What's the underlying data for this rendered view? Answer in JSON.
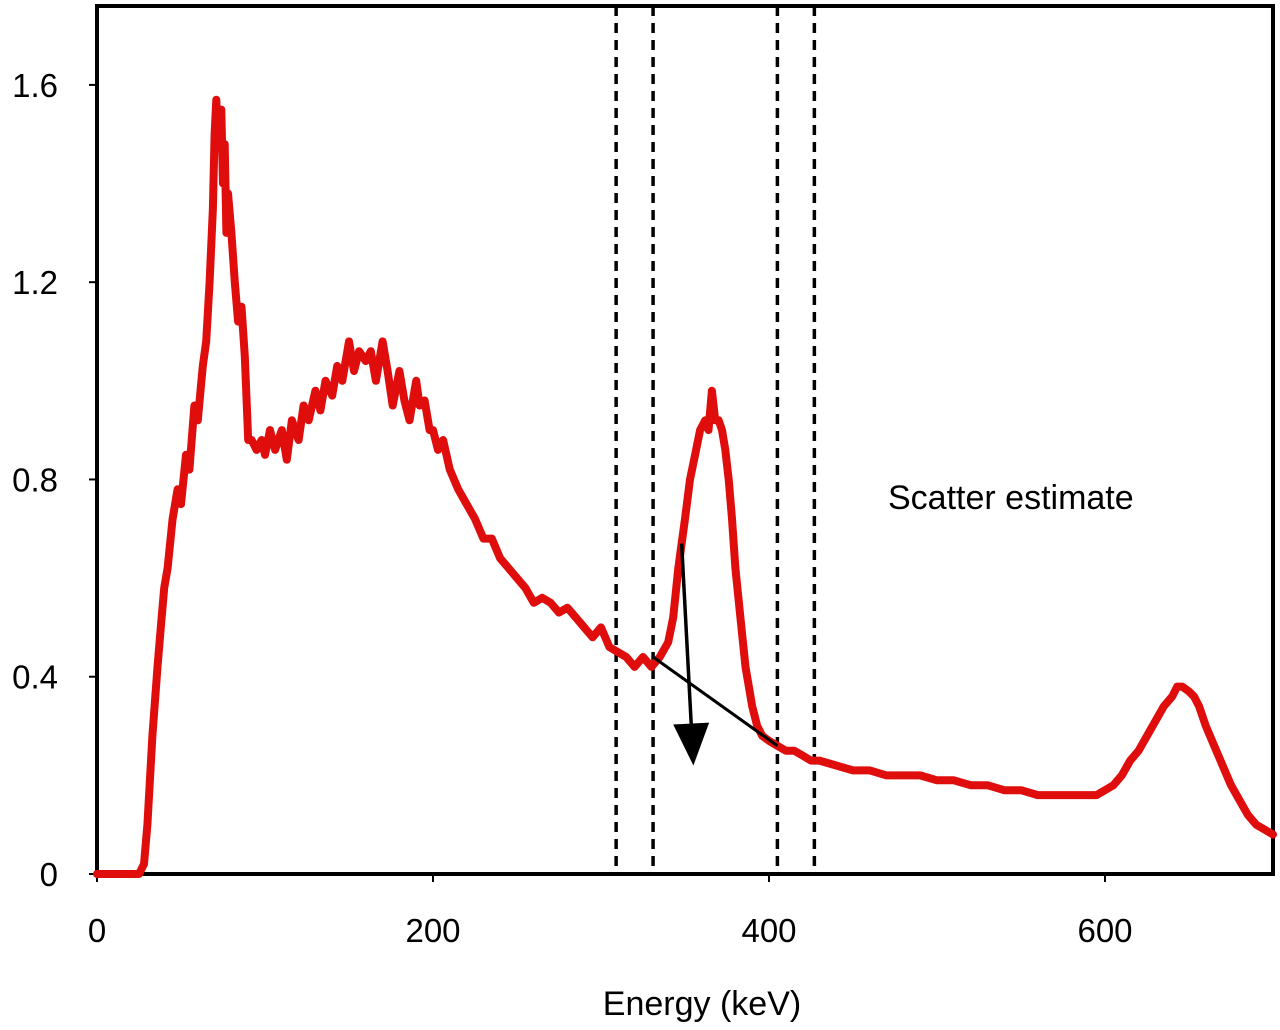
{
  "chart_data": {
    "type": "line",
    "xlabel": "Energy (keV)",
    "ylabel": "",
    "xlim": [
      0,
      700
    ],
    "ylim": [
      0,
      1.76
    ],
    "x_ticks": [
      0,
      200,
      400,
      600
    ],
    "x_tick_labels": [
      "0",
      "200",
      "400",
      "600"
    ],
    "y_ticks": [
      0,
      0.4,
      0.8,
      1.2,
      1.6
    ],
    "y_tick_labels": [
      "0",
      "0.4",
      "0.8",
      "1.2",
      "1.6"
    ],
    "grid": false,
    "legend": "none",
    "series": [
      {
        "color": "#e00d0d",
        "x": [
          0,
          10,
          20,
          25,
          28,
          30,
          33,
          36,
          38,
          40,
          42,
          45,
          48,
          50,
          53,
          55,
          58,
          60,
          63,
          65,
          67,
          69,
          70,
          71,
          72,
          73,
          74,
          75,
          76,
          77,
          78,
          80,
          82,
          84,
          86,
          88,
          90,
          92,
          95,
          98,
          100,
          103,
          106,
          110,
          113,
          116,
          120,
          123,
          126,
          130,
          133,
          136,
          140,
          143,
          146,
          150,
          153,
          156,
          160,
          163,
          166,
          170,
          173,
          176,
          180,
          183,
          186,
          190,
          192,
          195,
          198,
          200,
          203,
          206,
          210,
          215,
          220,
          225,
          230,
          235,
          240,
          245,
          250,
          255,
          260,
          265,
          270,
          275,
          280,
          285,
          290,
          295,
          300,
          305,
          310,
          315,
          320,
          325,
          330,
          335,
          340,
          343,
          346,
          350,
          353,
          356,
          359,
          362,
          364,
          366,
          368,
          370,
          372,
          374,
          376,
          378,
          380,
          383,
          386,
          390,
          393,
          396,
          400,
          405,
          410,
          415,
          420,
          425,
          430,
          440,
          450,
          460,
          470,
          480,
          490,
          500,
          510,
          520,
          530,
          540,
          550,
          560,
          570,
          580,
          590,
          595,
          600,
          605,
          610,
          615,
          620,
          625,
          630,
          635,
          640,
          643,
          646,
          650,
          653,
          656,
          660,
          665,
          670,
          675,
          680,
          685,
          690,
          695,
          700
        ],
        "y": [
          0,
          0,
          0,
          0,
          0.02,
          0.1,
          0.28,
          0.42,
          0.5,
          0.58,
          0.62,
          0.72,
          0.78,
          0.75,
          0.85,
          0.82,
          0.95,
          0.92,
          1.03,
          1.08,
          1.2,
          1.35,
          1.5,
          1.57,
          1.48,
          1.52,
          1.55,
          1.4,
          1.48,
          1.3,
          1.38,
          1.3,
          1.2,
          1.12,
          1.15,
          1.05,
          0.88,
          0.88,
          0.86,
          0.88,
          0.85,
          0.9,
          0.86,
          0.9,
          0.84,
          0.92,
          0.88,
          0.95,
          0.92,
          0.98,
          0.94,
          1.0,
          0.97,
          1.03,
          1.0,
          1.08,
          1.02,
          1.06,
          1.04,
          1.06,
          1.0,
          1.08,
          1.02,
          0.95,
          1.02,
          0.96,
          0.92,
          1.0,
          0.95,
          0.96,
          0.9,
          0.9,
          0.86,
          0.88,
          0.82,
          0.78,
          0.75,
          0.72,
          0.68,
          0.68,
          0.64,
          0.62,
          0.6,
          0.58,
          0.55,
          0.56,
          0.55,
          0.53,
          0.54,
          0.52,
          0.5,
          0.48,
          0.5,
          0.46,
          0.45,
          0.44,
          0.42,
          0.44,
          0.42,
          0.44,
          0.47,
          0.52,
          0.62,
          0.72,
          0.8,
          0.85,
          0.9,
          0.92,
          0.9,
          0.98,
          0.92,
          0.92,
          0.9,
          0.86,
          0.8,
          0.72,
          0.62,
          0.52,
          0.42,
          0.34,
          0.3,
          0.28,
          0.27,
          0.26,
          0.25,
          0.25,
          0.24,
          0.23,
          0.23,
          0.22,
          0.21,
          0.21,
          0.2,
          0.2,
          0.2,
          0.19,
          0.19,
          0.18,
          0.18,
          0.17,
          0.17,
          0.16,
          0.16,
          0.16,
          0.16,
          0.16,
          0.17,
          0.18,
          0.2,
          0.23,
          0.25,
          0.28,
          0.31,
          0.34,
          0.36,
          0.38,
          0.38,
          0.37,
          0.36,
          0.34,
          0.3,
          0.26,
          0.22,
          0.18,
          0.15,
          0.12,
          0.1,
          0.09,
          0.08
        ]
      }
    ],
    "vertical_lines": [
      309,
      331,
      405,
      427
    ],
    "scatter_line": {
      "x": [
        331,
        405
      ],
      "y": [
        0.44,
        0.26
      ]
    },
    "annotations": [
      {
        "text": "Scatter estimate",
        "arrow_from": [
          348,
          0.67
        ],
        "arrow_to": [
          355,
          0.22
        ]
      }
    ]
  }
}
